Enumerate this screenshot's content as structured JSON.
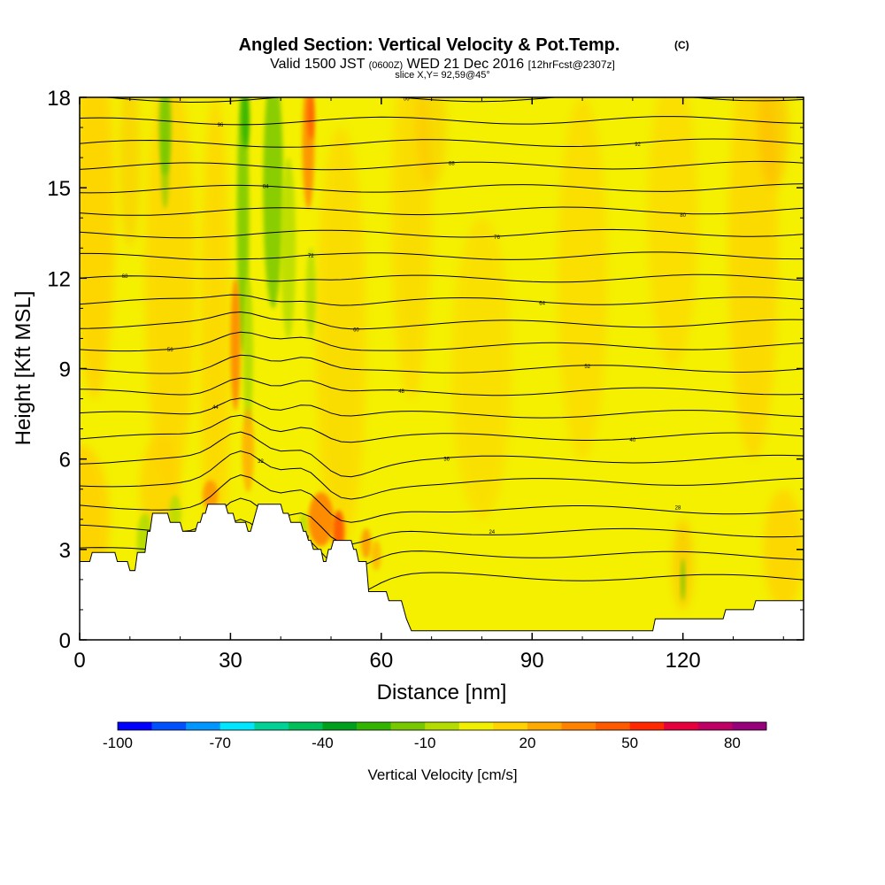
{
  "chart_data": {
    "type": "heatmap",
    "title": "Angled Section: Vertical Velocity & Pot.Temp.",
    "title_mark": "(C)",
    "subtitle": {
      "valid_prefix": "Valid 1500 JST",
      "utc": "(0600Z)",
      "date": "WED 21 Dec 2016",
      "forecast": "[12hrFcst@2307z]"
    },
    "slice_label": "slice X,Y= 92,59@45°",
    "xlabel": "Distance [nm]",
    "ylabel": "Height [Kft MSL]",
    "xlim": [
      0,
      144
    ],
    "ylim": [
      0,
      18
    ],
    "x_ticks": [
      "0",
      "30",
      "60",
      "90",
      "120"
    ],
    "y_ticks": [
      "0",
      "3",
      "6",
      "9",
      "12",
      "15",
      "18"
    ],
    "colorbar": {
      "label": "Vertical Velocity [cm/s]",
      "min": -100,
      "max": 90,
      "step": 10,
      "tick_labels": [
        "-100",
        "-70",
        "-40",
        "-10",
        "20",
        "50",
        "80"
      ],
      "colors": [
        "#0000ff",
        "#0050ff",
        "#0096ff",
        "#00e6ff",
        "#00d296",
        "#00be5a",
        "#00a01e",
        "#32b400",
        "#78c800",
        "#b4dc00",
        "#f0f000",
        "#ffd200",
        "#ffaa00",
        "#ff8200",
        "#ff5a00",
        "#ff2800",
        "#e6003c",
        "#be0064",
        "#960078"
      ]
    },
    "background_velocity": "-10 to 0 / 0 to 10 cm/s (yellow, light orange)",
    "updraft_max": "about 30-40 cm/s near x=48, height 3.5 kft",
    "downdraft_min": "about -20 cm/s near x=32-40, height 6-18 kft",
    "terrain_kft": [
      [
        0,
        2.6
      ],
      [
        2,
        2.6
      ],
      [
        2.5,
        2.9
      ],
      [
        7,
        2.9
      ],
      [
        7.5,
        2.6
      ],
      [
        9.5,
        2.6
      ],
      [
        10,
        2.3
      ],
      [
        11,
        2.3
      ],
      [
        11.5,
        2.9
      ],
      [
        13,
        2.9
      ],
      [
        13.5,
        3.6
      ],
      [
        14,
        3.6
      ],
      [
        14.5,
        4.2
      ],
      [
        17.5,
        4.2
      ],
      [
        18,
        3.9
      ],
      [
        20,
        3.9
      ],
      [
        20.5,
        3.6
      ],
      [
        23,
        3.6
      ],
      [
        23.5,
        3.9
      ],
      [
        24,
        3.9
      ],
      [
        24.5,
        4.2
      ],
      [
        25,
        4.2
      ],
      [
        25.5,
        4.5
      ],
      [
        29,
        4.5
      ],
      [
        29.5,
        4.2
      ],
      [
        30.5,
        4.2
      ],
      [
        31,
        3.9
      ],
      [
        33,
        3.9
      ],
      [
        33.5,
        3.6
      ],
      [
        34,
        3.6
      ],
      [
        34.5,
        3.9
      ],
      [
        35,
        4.2
      ],
      [
        35.5,
        4.5
      ],
      [
        40,
        4.5
      ],
      [
        40.5,
        4.2
      ],
      [
        41.5,
        4.2
      ],
      [
        42,
        3.9
      ],
      [
        44,
        3.9
      ],
      [
        44.5,
        3.6
      ],
      [
        45,
        3.6
      ],
      [
        45.5,
        3.3
      ],
      [
        46,
        3.3
      ],
      [
        46.5,
        3.0
      ],
      [
        48,
        3.0
      ],
      [
        48.5,
        2.6
      ],
      [
        49,
        2.6
      ],
      [
        49.5,
        3.0
      ],
      [
        50,
        3.0
      ],
      [
        50.5,
        3.3
      ],
      [
        54,
        3.3
      ],
      [
        54.5,
        3.0
      ],
      [
        55,
        3.0
      ],
      [
        55.5,
        2.6
      ],
      [
        57,
        2.6
      ],
      [
        57.5,
        1.6
      ],
      [
        61,
        1.6
      ],
      [
        61.5,
        1.3
      ],
      [
        64,
        1.3
      ],
      [
        64.5,
        1.0
      ],
      [
        65,
        0.7
      ],
      [
        66,
        0.3
      ],
      [
        114,
        0.3
      ],
      [
        114.5,
        0.7
      ],
      [
        128,
        0.7
      ],
      [
        128.5,
        1.0
      ],
      [
        134,
        1.0
      ],
      [
        134.5,
        1.3
      ],
      [
        144,
        1.3
      ]
    ],
    "theta_contour_labels": [
      "16",
      "20",
      "24",
      "28",
      "32",
      "36",
      "40",
      "44",
      "48",
      "52",
      "56",
      "60",
      "64",
      "68",
      "72",
      "76",
      "80",
      "84",
      "88",
      "92",
      "96",
      "00"
    ]
  }
}
